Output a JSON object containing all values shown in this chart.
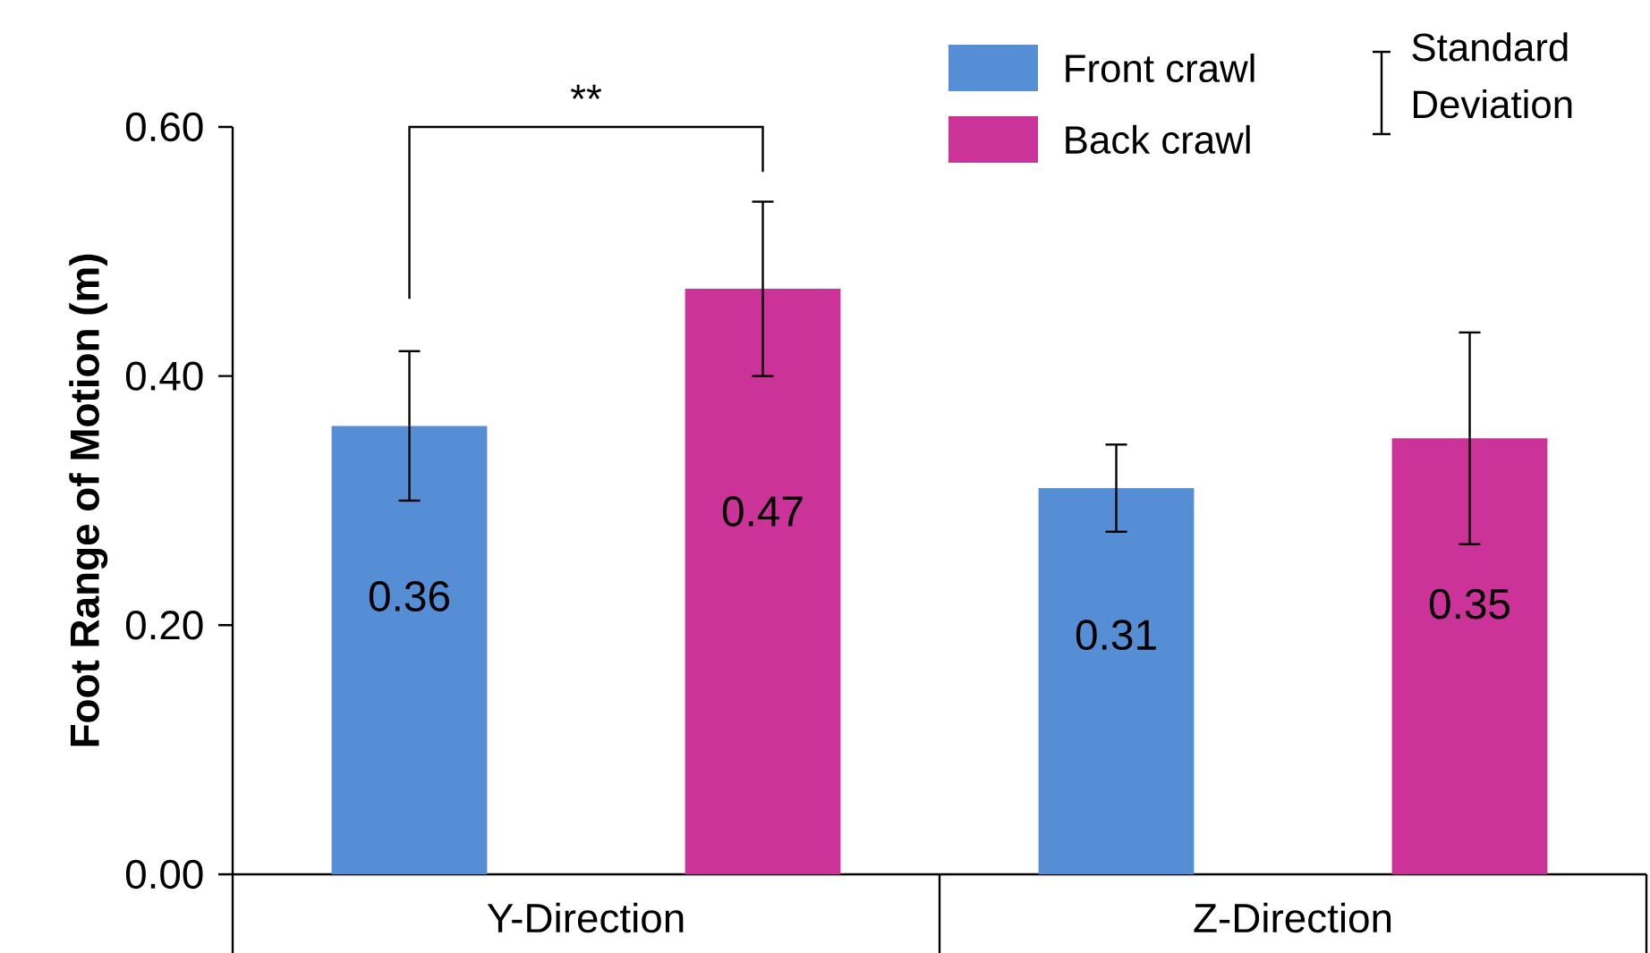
{
  "chart_data": {
    "type": "bar",
    "ylabel": "Foot Range of Motion (m)",
    "categories": [
      "Y-Direction",
      "Z-Direction"
    ],
    "series": [
      {
        "name": "Front crawl",
        "color": "#558ed5",
        "values": [
          0.36,
          0.31
        ],
        "errors": [
          0.06,
          0.035
        ]
      },
      {
        "name": "Back crawl",
        "color": "#cc3399",
        "values": [
          0.47,
          0.35
        ],
        "errors": [
          0.07,
          0.085
        ]
      }
    ],
    "ylim": [
      0,
      0.6
    ],
    "yticks": [
      {
        "value": 0,
        "label": "0.00"
      },
      {
        "value": 0.2,
        "label": "0.20"
      },
      {
        "value": 0.4,
        "label": "0.40"
      },
      {
        "value": 0.6,
        "label": "0.60"
      }
    ],
    "data_labels": true,
    "legend": "top right",
    "grid": false,
    "annotations": [
      "**",
      "Standard Deviation"
    ]
  }
}
